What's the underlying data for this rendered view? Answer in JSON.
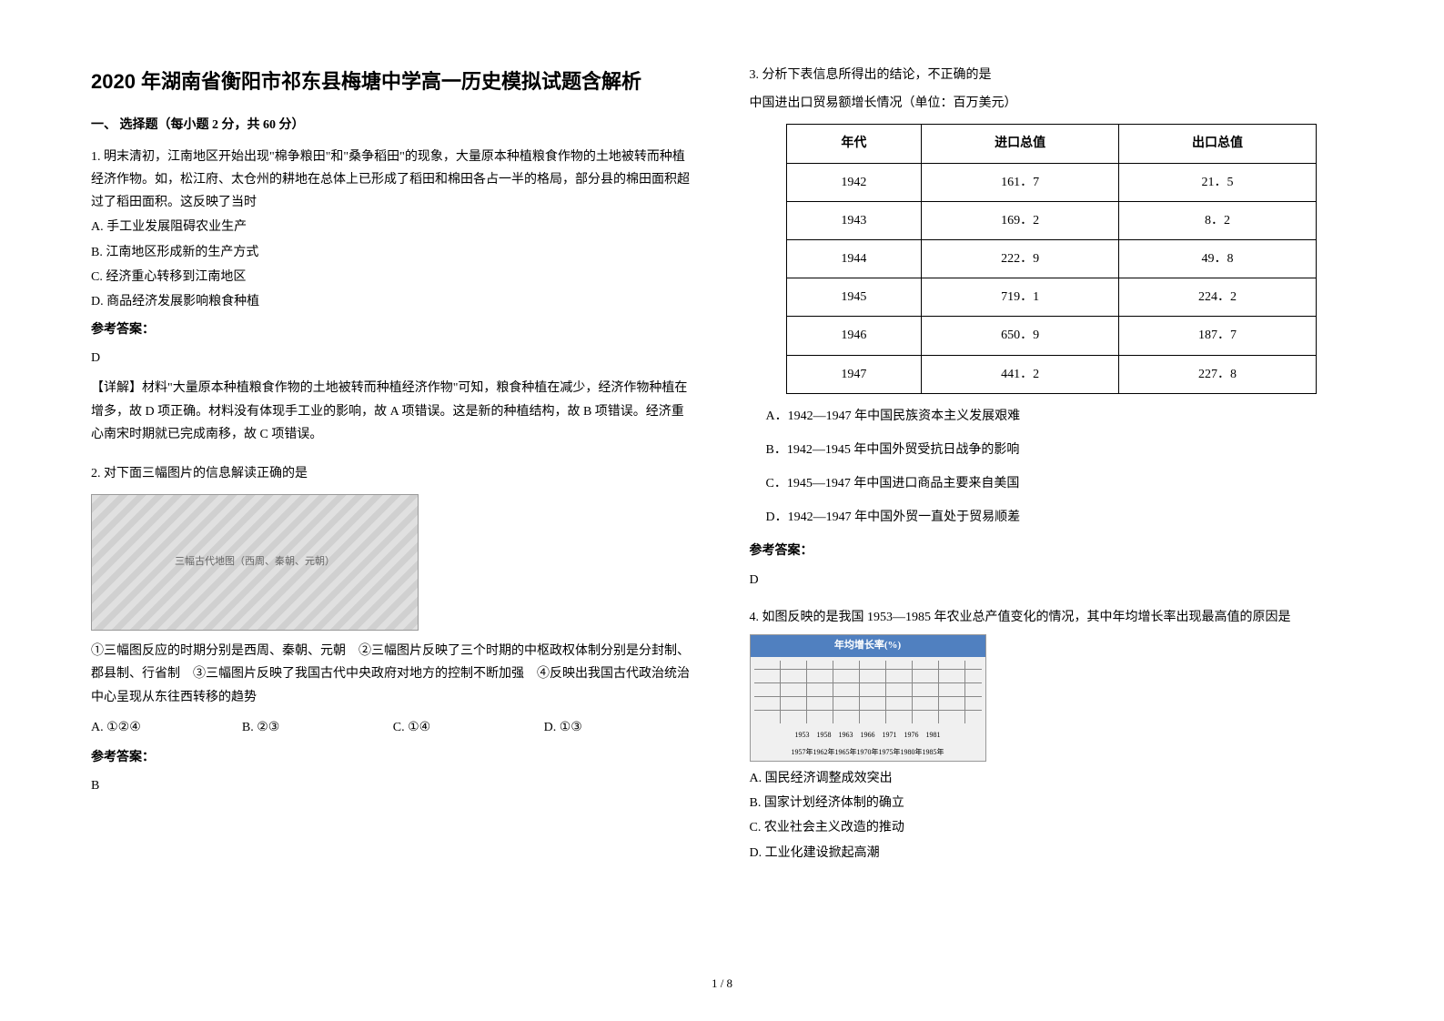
{
  "title": "2020 年湖南省衡阳市祁东县梅塘中学高一历史模拟试题含解析",
  "section_header": "一、 选择题（每小题 2 分，共 60 分）",
  "q1": {
    "stem": "1. 明末清初，江南地区开始出现\"棉争粮田\"和\"桑争稻田\"的现象，大量原本种植粮食作物的土地被转而种植经济作物。如，松江府、太仓州的耕地在总体上已形成了稻田和棉田各占一半的格局，部分县的棉田面积超过了稻田面积。这反映了当时",
    "optA": "A. 手工业发展阻碍农业生产",
    "optB": "B. 江南地区形成新的生产方式",
    "optC": "C. 经济重心转移到江南地区",
    "optD": "D. 商品经济发展影响粮食种植",
    "answer_label": "参考答案：",
    "answer": "D",
    "explanation": "【详解】材料\"大量原本种植粮食作物的土地被转而种植经济作物\"可知，粮食种植在减少，经济作物种植在增多，故 D 项正确。材料没有体现手工业的影响，故 A 项错误。这是新的种植结构，故 B 项错误。经济重心南宋时期就已完成南移，故 C 项错误。"
  },
  "q2": {
    "stem": "2. 对下面三幅图片的信息解读正确的是",
    "image_alt": "三幅古代地图（西周、秦朝、元朝）",
    "statements": "①三幅图反应的时期分别是西周、秦朝、元朝　②三幅图片反映了三个时期的中枢政权体制分别是分封制、郡县制、行省制　③三幅图片反映了我国古代中央政府对地方的控制不断加强　④反映出我国古代政治统治中心呈现从东往西转移的趋势",
    "optA": "A. ①②④",
    "optB": "B. ②③",
    "optC": "C. ①④",
    "optD": "D. ①③",
    "answer_label": "参考答案：",
    "answer": "B"
  },
  "q3": {
    "stem": "3. 分析下表信息所得出的结论，不正确的是",
    "caption": "中国进出口贸易额增长情况（单位：百万美元）",
    "table": {
      "headers": [
        "年代",
        "进口总值",
        "出口总值"
      ],
      "rows": [
        [
          "1942",
          "161．7",
          "21．5"
        ],
        [
          "1943",
          "169．2",
          "8．2"
        ],
        [
          "1944",
          "222．9",
          "49．8"
        ],
        [
          "1945",
          "719．1",
          "224．2"
        ],
        [
          "1946",
          "650．9",
          "187．7"
        ],
        [
          "1947",
          "441．2",
          "227．8"
        ]
      ]
    },
    "optA": "A．1942—1947 年中国民族资本主义发展艰难",
    "optB": "B．1942—1945 年中国外贸受抗日战争的影响",
    "optC": "C．1945—1947 年中国进口商品主要来自美国",
    "optD": "D．1942—1947 年中国外贸一直处于贸易顺差",
    "answer_label": "参考答案：",
    "answer": "D"
  },
  "q4": {
    "stem": "4. 如图反映的是我国 1953—1985 年农业总产值变化的情况，其中年均增长率出现最高值的原因是",
    "chart": {
      "title": "年均增长率(%)",
      "ylim": [
        0,
        12
      ],
      "ytick_step": 2,
      "xaxis_top": "1953　1958　1963　1966　1971　1976　1981",
      "xaxis_bottom": "1957年1962年1965年1970年1975年1980年1985年",
      "bar_color": "#606060",
      "background_color": "#f0f0f0",
      "grid_color": "#888888"
    },
    "optA": "A. 国民经济调整成效突出",
    "optB": "B. 国家计划经济体制的确立",
    "optC": "C. 农业社会主义改造的推动",
    "optD": "D. 工业化建设掀起高潮"
  },
  "footer": "1 / 8"
}
